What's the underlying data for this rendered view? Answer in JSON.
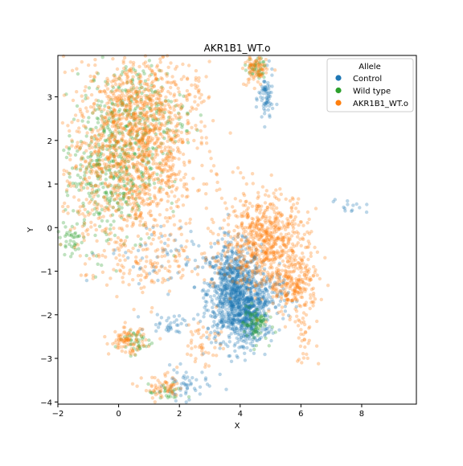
{
  "chart_data": {
    "type": "scatter",
    "title": "AKR1B1_WT.o",
    "xlabel": "X",
    "ylabel": "Y",
    "xlim": [
      -2,
      9.8
    ],
    "ylim": [
      -4.05,
      3.95
    ],
    "xticks": [
      -2,
      0,
      2,
      4,
      6,
      8
    ],
    "yticks": [
      -4,
      -3,
      -2,
      -1,
      0,
      1,
      2,
      3
    ],
    "grid": false,
    "legend": {
      "title": "Allele",
      "placement": "top-right",
      "entries": [
        "Control",
        "Wild type",
        "AKR1B1_WT.o"
      ]
    },
    "series": [
      {
        "name": "Control",
        "color": "#1f77b4",
        "clusters": [
          {
            "center": [
              3.8,
              -1.5
            ],
            "spread": [
              0.45,
              0.55
            ],
            "n": 900
          },
          {
            "center": [
              4.3,
              -2.1
            ],
            "spread": [
              0.3,
              0.3
            ],
            "n": 250
          },
          {
            "center": [
              4.9,
              -1.6
            ],
            "spread": [
              0.35,
              0.3
            ],
            "n": 120
          },
          {
            "center": [
              4.85,
              2.95
            ],
            "spread": [
              0.12,
              0.3
            ],
            "n": 70
          },
          {
            "center": [
              2.2,
              -3.6
            ],
            "spread": [
              0.35,
              0.18
            ],
            "n": 50
          },
          {
            "center": [
              1.7,
              -2.2
            ],
            "spread": [
              0.35,
              0.12
            ],
            "n": 35
          },
          {
            "center": [
              7.6,
              0.5
            ],
            "spread": [
              0.3,
              0.08
            ],
            "n": 14
          },
          {
            "center": [
              1.5,
              -0.6
            ],
            "spread": [
              1.0,
              0.4
            ],
            "n": 60
          }
        ]
      },
      {
        "name": "Wild type",
        "color": "#2ca02c",
        "clusters": [
          {
            "center": [
              -0.3,
              1.3
            ],
            "spread": [
              0.75,
              0.9
            ],
            "n": 400
          },
          {
            "center": [
              0.6,
              2.6
            ],
            "spread": [
              0.8,
              0.6
            ],
            "n": 220
          },
          {
            "center": [
              4.5,
              -2.2
            ],
            "spread": [
              0.2,
              0.2
            ],
            "n": 80
          },
          {
            "center": [
              0.5,
              -2.6
            ],
            "spread": [
              0.3,
              0.15
            ],
            "n": 40
          },
          {
            "center": [
              -1.6,
              -0.3
            ],
            "spread": [
              0.22,
              0.15
            ],
            "n": 30
          },
          {
            "center": [
              4.5,
              3.65
            ],
            "spread": [
              0.18,
              0.12
            ],
            "n": 40
          },
          {
            "center": [
              1.6,
              -3.8
            ],
            "spread": [
              0.3,
              0.1
            ],
            "n": 25
          }
        ]
      },
      {
        "name": "AKR1B1_WT.o",
        "color": "#ff7f0e",
        "clusters": [
          {
            "center": [
              0.4,
              1.5
            ],
            "spread": [
              1.1,
              1.1
            ],
            "n": 1100
          },
          {
            "center": [
              0.9,
              2.7
            ],
            "spread": [
              0.8,
              0.55
            ],
            "n": 400
          },
          {
            "center": [
              4.8,
              -0.3
            ],
            "spread": [
              0.7,
              0.55
            ],
            "n": 650
          },
          {
            "center": [
              5.8,
              -1.3
            ],
            "spread": [
              0.4,
              0.35
            ],
            "n": 220
          },
          {
            "center": [
              0.3,
              -2.6
            ],
            "spread": [
              0.3,
              0.15
            ],
            "n": 90
          },
          {
            "center": [
              1.5,
              -3.7
            ],
            "spread": [
              0.35,
              0.15
            ],
            "n": 60
          },
          {
            "center": [
              4.5,
              3.6
            ],
            "spread": [
              0.18,
              0.18
            ],
            "n": 80
          },
          {
            "center": [
              6.1,
              -2.5
            ],
            "spread": [
              0.2,
              0.3
            ],
            "n": 35
          },
          {
            "center": [
              1.5,
              -0.8
            ],
            "spread": [
              1.2,
              0.3
            ],
            "n": 120
          },
          {
            "center": [
              2.8,
              -2.6
            ],
            "spread": [
              0.3,
              0.3
            ],
            "n": 45
          },
          {
            "center": [
              2.6,
              3.1
            ],
            "spread": [
              0.1,
              0.2
            ],
            "n": 15
          }
        ]
      }
    ]
  }
}
